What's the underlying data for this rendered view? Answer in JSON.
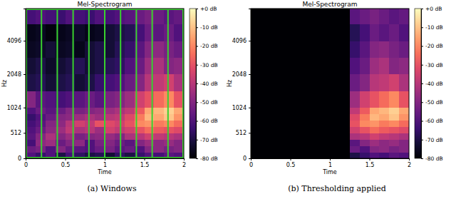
{
  "chart_data": [
    {
      "type": "heatmap",
      "title": "Mel-Spectrogram",
      "x_label": "Time",
      "y_label": "Hz",
      "caption": "(a) Windows",
      "color": "magma",
      "xlim": [
        0,
        2
      ],
      "xticks": [
        0,
        0.5,
        1,
        1.5,
        2
      ],
      "ylim": [
        0,
        8000
      ],
      "yticks": [
        0,
        512,
        1024,
        2048,
        4096
      ],
      "x_bins": [
        0,
        0.125,
        0.25,
        0.375,
        0.5,
        0.625,
        0.75,
        0.875,
        1,
        1.125,
        1.25,
        1.375,
        1.5,
        1.625,
        1.75,
        1.875,
        2
      ],
      "y_bins": [
        0,
        128,
        256,
        384,
        512,
        640,
        768,
        896,
        1024,
        1448,
        2048,
        2896,
        4096,
        5793,
        8000
      ],
      "windows": [
        0,
        0.2,
        0.4,
        0.6,
        0.8,
        1,
        1.2,
        1.4,
        1.6,
        1.8,
        2
      ],
      "values": [
        [
          -60,
          -65,
          -60,
          -70,
          -62,
          -66,
          -70,
          -68,
          -72,
          -66,
          -70,
          -65,
          -60,
          -62,
          -58,
          -60
        ],
        [
          -55,
          -52,
          -60,
          -50,
          -56,
          -58,
          -60,
          -55,
          -52,
          -58,
          -55,
          -60,
          -50,
          -48,
          -52,
          -50
        ],
        [
          -62,
          -48,
          -45,
          -55,
          -50,
          -48,
          -60,
          -52,
          -50,
          -55,
          -58,
          -50,
          -45,
          -48,
          -46,
          -50
        ],
        [
          -58,
          -50,
          -42,
          -50,
          -45,
          -52,
          -50,
          -48,
          -46,
          -50,
          -42,
          -40,
          -35,
          -38,
          -40,
          -42
        ],
        [
          -60,
          -55,
          -48,
          -45,
          -38,
          -42,
          -40,
          -45,
          -35,
          -38,
          -35,
          -30,
          -25,
          -28,
          -30,
          -32
        ],
        [
          -62,
          -58,
          -50,
          -48,
          -40,
          -35,
          -38,
          -30,
          -32,
          -35,
          -30,
          -20,
          -18,
          -22,
          -20,
          -25
        ],
        [
          -65,
          -60,
          -55,
          -50,
          -48,
          -45,
          -42,
          -45,
          -40,
          -38,
          -32,
          -22,
          -12,
          -15,
          -10,
          -18
        ],
        [
          -60,
          -55,
          -58,
          -55,
          -50,
          -52,
          -50,
          -48,
          -45,
          -42,
          -38,
          -28,
          -15,
          -12,
          -8,
          -15
        ],
        [
          -50,
          -58,
          -60,
          -62,
          -60,
          -58,
          -55,
          -58,
          -52,
          -50,
          -45,
          -35,
          -30,
          -25,
          -20,
          -30
        ],
        [
          -70,
          -68,
          -72,
          -70,
          -68,
          -72,
          -70,
          -65,
          -62,
          -60,
          -55,
          -50,
          -40,
          -38,
          -35,
          -42
        ],
        [
          -72,
          -70,
          -74,
          -72,
          -70,
          -68,
          -72,
          -70,
          -68,
          -66,
          -60,
          -55,
          -45,
          -42,
          -50,
          -48
        ],
        [
          -75,
          -74,
          -72,
          -75,
          -74,
          -76,
          -72,
          -70,
          -72,
          -68,
          -65,
          -58,
          -50,
          -48,
          -52,
          -55
        ],
        [
          -76,
          -75,
          -78,
          -76,
          -75,
          -74,
          -76,
          -75,
          -72,
          -70,
          -68,
          -62,
          -55,
          -58,
          -55,
          -60
        ],
        [
          -62,
          -60,
          -62,
          -64,
          -60,
          -62,
          -64,
          -60,
          -62,
          -60,
          -58,
          -55,
          -52,
          -55,
          -58,
          -56
        ]
      ],
      "colorbar": {
        "range": [
          -80,
          0
        ],
        "ticks": [
          {
            "value": 0,
            "label": "+0 dB"
          },
          {
            "value": -10,
            "label": "-10 dB"
          },
          {
            "value": -20,
            "label": "-20 dB"
          },
          {
            "value": -30,
            "label": "-30 dB"
          },
          {
            "value": -40,
            "label": "-40 dB"
          },
          {
            "value": -50,
            "label": "-50 dB"
          },
          {
            "value": -60,
            "label": "-60 dB"
          },
          {
            "value": -70,
            "label": "-70 dB"
          },
          {
            "value": -80,
            "label": "-80 dB"
          }
        ]
      }
    },
    {
      "type": "heatmap",
      "title": "Mel-Spectrogram",
      "x_label": "Time",
      "y_label": "Hz",
      "caption": "(b) Thresholding applied",
      "color": "magma",
      "xlim": [
        0,
        2
      ],
      "xticks": [
        0,
        0.5,
        1,
        1.5,
        2
      ],
      "ylim": [
        0,
        8000
      ],
      "yticks": [
        0,
        512,
        1024,
        2048,
        4096
      ],
      "x_bins": [
        0,
        0.125,
        0.25,
        0.375,
        0.5,
        0.625,
        0.75,
        0.875,
        1,
        1.125,
        1.25,
        1.375,
        1.5,
        1.625,
        1.75,
        1.875,
        2
      ],
      "y_bins": [
        0,
        128,
        256,
        384,
        512,
        640,
        768,
        896,
        1024,
        1448,
        2048,
        2896,
        4096,
        5793,
        8000
      ],
      "values": [
        [
          -80,
          -80,
          -80,
          -80,
          -80,
          -80,
          -80,
          -80,
          -80,
          -80,
          -70,
          -65,
          -60,
          -62,
          -58,
          -60
        ],
        [
          -80,
          -80,
          -80,
          -80,
          -80,
          -80,
          -80,
          -80,
          -80,
          -80,
          -55,
          -60,
          -50,
          -48,
          -52,
          -50
        ],
        [
          -80,
          -80,
          -80,
          -80,
          -80,
          -80,
          -80,
          -80,
          -80,
          -80,
          -58,
          -50,
          -45,
          -48,
          -46,
          -50
        ],
        [
          -80,
          -80,
          -80,
          -80,
          -80,
          -80,
          -80,
          -80,
          -80,
          -80,
          -42,
          -40,
          -35,
          -38,
          -40,
          -42
        ],
        [
          -80,
          -80,
          -80,
          -80,
          -80,
          -80,
          -80,
          -80,
          -80,
          -80,
          -35,
          -30,
          -25,
          -28,
          -30,
          -32
        ],
        [
          -80,
          -80,
          -80,
          -80,
          -80,
          -80,
          -80,
          -80,
          -80,
          -80,
          -30,
          -20,
          -18,
          -22,
          -20,
          -25
        ],
        [
          -80,
          -80,
          -80,
          -80,
          -80,
          -80,
          -80,
          -80,
          -80,
          -80,
          -32,
          -22,
          -12,
          -15,
          -10,
          -18
        ],
        [
          -80,
          -80,
          -80,
          -80,
          -80,
          -80,
          -80,
          -80,
          -80,
          -80,
          -38,
          -28,
          -15,
          -12,
          -8,
          -15
        ],
        [
          -80,
          -80,
          -80,
          -80,
          -80,
          -80,
          -80,
          -80,
          -80,
          -80,
          -45,
          -35,
          -30,
          -25,
          -20,
          -30
        ],
        [
          -80,
          -80,
          -80,
          -80,
          -80,
          -80,
          -80,
          -80,
          -80,
          -80,
          -55,
          -50,
          -40,
          -38,
          -35,
          -42
        ],
        [
          -80,
          -80,
          -80,
          -80,
          -80,
          -80,
          -80,
          -80,
          -80,
          -80,
          -60,
          -55,
          -45,
          -42,
          -50,
          -48
        ],
        [
          -80,
          -80,
          -80,
          -80,
          -80,
          -80,
          -80,
          -80,
          -80,
          -80,
          -65,
          -58,
          -50,
          -48,
          -52,
          -55
        ],
        [
          -80,
          -80,
          -80,
          -80,
          -80,
          -80,
          -80,
          -80,
          -80,
          -80,
          -68,
          -62,
          -55,
          -58,
          -55,
          -60
        ],
        [
          -80,
          -80,
          -80,
          -80,
          -80,
          -80,
          -80,
          -80,
          -80,
          -80,
          -58,
          -55,
          -52,
          -55,
          -58,
          -56
        ]
      ],
      "colorbar": {
        "range": [
          -80,
          0
        ],
        "ticks": [
          {
            "value": 0,
            "label": "+0 dB"
          },
          {
            "value": -10,
            "label": "-10 dB"
          },
          {
            "value": -20,
            "label": "-20 dB"
          },
          {
            "value": -30,
            "label": "-30 dB"
          },
          {
            "value": -40,
            "label": "-40 dB"
          },
          {
            "value": -50,
            "label": "-50 dB"
          },
          {
            "value": -60,
            "label": "-60 dB"
          },
          {
            "value": -70,
            "label": "-70 dB"
          },
          {
            "value": -80,
            "label": "-80 dB"
          }
        ]
      }
    }
  ]
}
